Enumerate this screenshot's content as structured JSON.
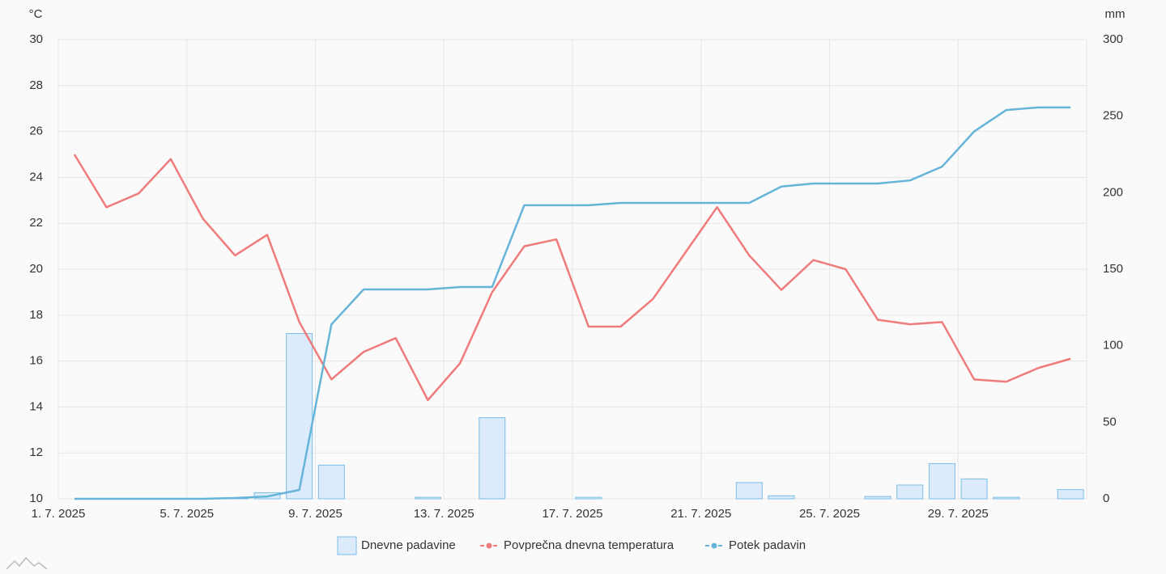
{
  "chart_data": {
    "type": "combo",
    "y_unit": "°C",
    "y2_unit": "mm",
    "categories": [
      "1. 7. 2025",
      null,
      null,
      null,
      "5. 7. 2025",
      null,
      null,
      null,
      "9. 7. 2025",
      null,
      null,
      null,
      "13. 7. 2025",
      null,
      null,
      null,
      "17. 7. 2025",
      null,
      null,
      null,
      "21. 7. 2025",
      null,
      null,
      null,
      "25. 7. 2025",
      null,
      null,
      null,
      "29. 7. 2025",
      null,
      null,
      null
    ],
    "series": [
      {
        "name": "Dnevne padavine",
        "kind": "bar",
        "axis": "y2",
        "color": "#7bbde6",
        "fill": "#dcebfb",
        "values": [
          0,
          0,
          0,
          0,
          0,
          0.5,
          4,
          108,
          22,
          0,
          0,
          1,
          0,
          53,
          0,
          0,
          1,
          0,
          0,
          0,
          0,
          10.6,
          2,
          0,
          0,
          1.5,
          9,
          23,
          13,
          1,
          0,
          6
        ]
      },
      {
        "name": "Povprečna dnevna temperatura",
        "kind": "line",
        "axis": "y",
        "color": "#ef7b7b",
        "values": [
          25.0,
          22.7,
          23.3,
          24.8,
          22.2,
          20.6,
          21.5,
          17.7,
          15.2,
          16.4,
          17.0,
          14.3,
          15.9,
          19.0,
          21.0,
          21.3,
          17.5,
          17.5,
          18.7,
          20.7,
          22.7,
          20.6,
          19.1,
          20.4,
          20.0,
          17.8,
          17.6,
          17.7,
          15.2,
          15.1,
          15.7,
          16.1
        ]
      },
      {
        "name": "Potek padavin",
        "kind": "line",
        "axis": "y2",
        "color": "#66b5d9",
        "values": [
          0,
          0,
          0,
          0,
          0,
          0.5,
          1.5,
          5.8,
          114,
          136.8,
          136.8,
          136.8,
          138.4,
          138.4,
          191.8,
          191.8,
          191.8,
          193.3,
          193.3,
          193.3,
          193.3,
          193.3,
          204,
          206,
          206,
          206,
          208,
          217,
          240,
          254,
          255.7,
          255.7
        ]
      }
    ],
    "ylim": [
      10,
      30
    ],
    "yticks": [
      10,
      12,
      14,
      16,
      18,
      20,
      22,
      24,
      26,
      28,
      30
    ],
    "y2lim": [
      0,
      300
    ],
    "y2ticks": [
      0,
      50,
      100,
      150,
      200,
      250,
      300
    ],
    "grid": true,
    "legend": "bottom"
  }
}
